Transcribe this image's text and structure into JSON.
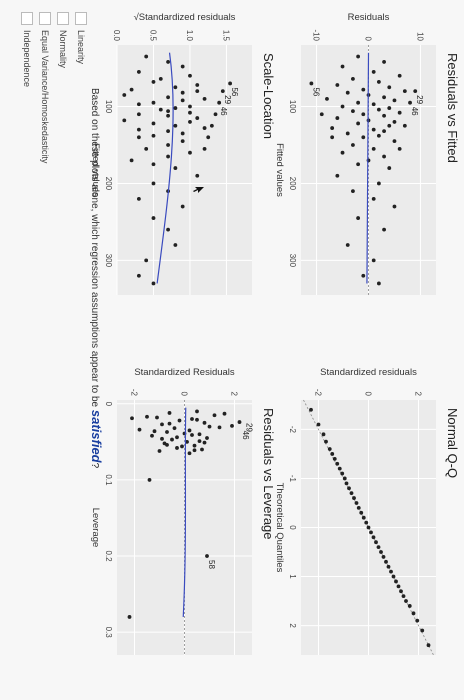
{
  "plots": {
    "residuals_vs_fitted": {
      "title": "Residuals vs Fitted",
      "xlabel": "Fitted values",
      "ylabel": "Residuals"
    },
    "normal_qq": {
      "title": "Normal Q-Q",
      "xlabel": "Theoretical Quantiles",
      "ylabel": "Standardized residuals"
    },
    "scale_location": {
      "title": "Scale-Location",
      "xlabel": "Fitted values",
      "ylabel": "√Standardized residuals"
    },
    "residuals_vs_leverage": {
      "title": "Residuals vs Leverage",
      "xlabel": "Leverage",
      "ylabel": "Standardized Residuals"
    }
  },
  "question": {
    "prefix": "Based on these plots alone, which regression assumptions appear to be",
    "emph": "satisfied",
    "suffix": "?"
  },
  "options": [
    "Linearity",
    "Normality",
    "Equal Variance/Homoskedasticity",
    "Independence"
  ],
  "colors": {
    "points": "#222222",
    "smooth_line": "#3a4bbf",
    "panel_bg": "#ebebeb",
    "grid": "#ffffff"
  },
  "chart_data": [
    {
      "type": "scatter",
      "title": "Residuals vs Fitted",
      "xlabel": "Fitted values",
      "ylabel": "Residuals",
      "xlim": [
        20,
        345
      ],
      "ylim": [
        -13,
        13
      ],
      "xticks": [
        100,
        200,
        300
      ],
      "yticks": [
        -10,
        0,
        10
      ],
      "x": [
        35,
        42,
        48,
        55,
        60,
        64,
        68,
        72,
        75,
        78,
        80,
        82,
        85,
        88,
        90,
        92,
        95,
        97,
        100,
        102,
        104,
        106,
        108,
        110,
        112,
        115,
        118,
        120,
        122,
        125,
        128,
        130,
        132,
        135,
        138,
        140,
        145,
        150,
        155,
        160,
        165,
        170,
        175,
        180,
        190,
        200,
        210,
        220,
        230,
        245,
        260,
        280,
        300,
        320,
        330,
        80,
        95,
        110,
        125,
        140,
        155,
        70
      ],
      "y": [
        -2,
        3,
        -5,
        1,
        6,
        -3,
        2,
        -6,
        4,
        -1,
        7,
        -4,
        0,
        3,
        -8,
        5,
        -2,
        1,
        -5,
        4,
        2,
        -3,
        6,
        -1,
        3,
        -6,
        0,
        5,
        -2,
        4,
        -7,
        1,
        3,
        -4,
        2,
        -1,
        5,
        -3,
        1,
        -5,
        3,
        0,
        -2,
        4,
        -6,
        2,
        -3,
        1,
        5,
        -2,
        3,
        -4,
        1,
        -1,
        2,
        9,
        8,
        -9,
        7,
        -7,
        6,
        -11
      ],
      "labels": [
        {
          "text": "29",
          "x": 80,
          "y": 9
        },
        {
          "text": "46",
          "x": 95,
          "y": 8
        },
        {
          "text": "56",
          "x": 70,
          "y": -11
        }
      ],
      "grid": true
    },
    {
      "type": "scatter",
      "title": "Normal Q-Q",
      "xlabel": "Theoretical Quantiles",
      "ylabel": "Standardized residuals",
      "xlim": [
        -2.6,
        2.6
      ],
      "ylim": [
        -2.7,
        2.7
      ],
      "xticks": [
        -2,
        -1,
        0,
        1,
        2
      ],
      "yticks": [
        -2,
        0,
        2
      ],
      "x": [
        -2.4,
        -2.1,
        -1.9,
        -1.75,
        -1.6,
        -1.5,
        -1.4,
        -1.3,
        -1.2,
        -1.1,
        -1.0,
        -0.9,
        -0.8,
        -0.7,
        -0.6,
        -0.5,
        -0.4,
        -0.3,
        -0.2,
        -0.1,
        0.0,
        0.1,
        0.2,
        0.3,
        0.4,
        0.5,
        0.6,
        0.7,
        0.8,
        0.9,
        1.0,
        1.1,
        1.2,
        1.3,
        1.4,
        1.5,
        1.6,
        1.75,
        1.9,
        2.1,
        2.4
      ],
      "y": [
        -2.3,
        -2.0,
        -1.8,
        -1.7,
        -1.55,
        -1.45,
        -1.35,
        -1.25,
        -1.15,
        -1.05,
        -0.95,
        -0.88,
        -0.78,
        -0.68,
        -0.58,
        -0.48,
        -0.39,
        -0.29,
        -0.19,
        -0.09,
        0.0,
        0.1,
        0.2,
        0.3,
        0.4,
        0.5,
        0.6,
        0.7,
        0.8,
        0.9,
        1.0,
        1.1,
        1.2,
        1.3,
        1.4,
        1.5,
        1.65,
        1.8,
        1.95,
        2.15,
        2.4
      ],
      "grid": true
    },
    {
      "type": "scatter",
      "title": "Scale-Location",
      "xlabel": "Fitted values",
      "ylabel": "√Standardized residuals",
      "xlim": [
        20,
        345
      ],
      "ylim": [
        0,
        1.85
      ],
      "xticks": [
        100,
        200,
        300
      ],
      "yticks": [
        0.0,
        0.5,
        1.0,
        1.5
      ],
      "x": [
        35,
        42,
        48,
        55,
        60,
        64,
        68,
        72,
        75,
        78,
        80,
        82,
        85,
        88,
        90,
        92,
        95,
        97,
        100,
        102,
        104,
        106,
        108,
        110,
        112,
        115,
        118,
        120,
        122,
        125,
        128,
        130,
        132,
        135,
        138,
        140,
        145,
        150,
        155,
        160,
        165,
        170,
        175,
        180,
        190,
        200,
        210,
        220,
        230,
        245,
        260,
        280,
        300,
        320,
        330,
        80,
        95,
        110,
        125,
        140,
        155,
        70
      ],
      "y": [
        0.4,
        0.7,
        0.9,
        0.3,
        1.0,
        0.6,
        0.5,
        1.1,
        0.8,
        0.2,
        1.1,
        0.9,
        0.1,
        0.7,
        1.2,
        0.9,
        0.5,
        0.3,
        1.0,
        0.8,
        0.6,
        0.7,
        1.0,
        0.3,
        0.7,
        1.1,
        0.1,
        1.0,
        0.5,
        0.8,
        1.2,
        0.3,
        0.7,
        0.9,
        0.5,
        0.3,
        0.9,
        0.7,
        0.4,
        1.0,
        0.7,
        0.2,
        0.5,
        0.8,
        1.1,
        0.5,
        0.7,
        0.3,
        0.9,
        0.5,
        0.7,
        0.8,
        0.4,
        0.3,
        0.5,
        1.45,
        1.4,
        1.35,
        1.3,
        1.25,
        1.2,
        1.55
      ],
      "labels": [
        {
          "text": "29",
          "x": 80,
          "y": 1.45
        },
        {
          "text": "56",
          "x": 70,
          "y": 1.55
        },
        {
          "text": "46",
          "x": 95,
          "y": 1.4
        }
      ],
      "grid": true
    },
    {
      "type": "scatter",
      "title": "Residuals vs Leverage",
      "xlabel": "Leverage",
      "ylabel": "Standardized Residuals",
      "xlim": [
        -0.005,
        0.33
      ],
      "ylim": [
        -2.7,
        2.7
      ],
      "xticks": [
        0.0,
        0.1,
        0.2,
        0.3
      ],
      "yticks": [
        -2,
        0,
        2
      ],
      "x": [
        0.01,
        0.012,
        0.015,
        0.018,
        0.02,
        0.022,
        0.025,
        0.027,
        0.03,
        0.032,
        0.035,
        0.037,
        0.04,
        0.042,
        0.045,
        0.047,
        0.05,
        0.052,
        0.055,
        0.058,
        0.06,
        0.062,
        0.065,
        0.013,
        0.017,
        0.021,
        0.026,
        0.031,
        0.036,
        0.041,
        0.046,
        0.051,
        0.056,
        0.061,
        0.019,
        0.024,
        0.029,
        0.034,
        0.039,
        0.044,
        0.049,
        0.054,
        0.1,
        0.2,
        0.28
      ],
      "y": [
        0.5,
        -0.6,
        1.2,
        -1.1,
        0.3,
        -0.2,
        0.8,
        -0.9,
        1.0,
        -0.4,
        0.2,
        -0.7,
        0.6,
        -1.3,
        0.9,
        -0.5,
        0.1,
        -0.8,
        0.4,
        -0.3,
        0.7,
        -1.0,
        0.2,
        1.6,
        -1.5,
        0.5,
        -0.6,
        1.4,
        -1.2,
        0.3,
        -0.9,
        0.8,
        -0.1,
        0.4,
        -2.1,
        2.2,
        1.9,
        -1.8,
        0.0,
        -0.3,
        0.6,
        -0.7,
        -1.4,
        0.9,
        -2.2
      ],
      "labels": [
        {
          "text": "29",
          "x": 0.02,
          "y": 2.4
        },
        {
          "text": "46",
          "x": 0.03,
          "y": 2.25
        },
        {
          "text": "58",
          "x": 0.2,
          "y": 0.9
        }
      ],
      "grid": true
    }
  ]
}
